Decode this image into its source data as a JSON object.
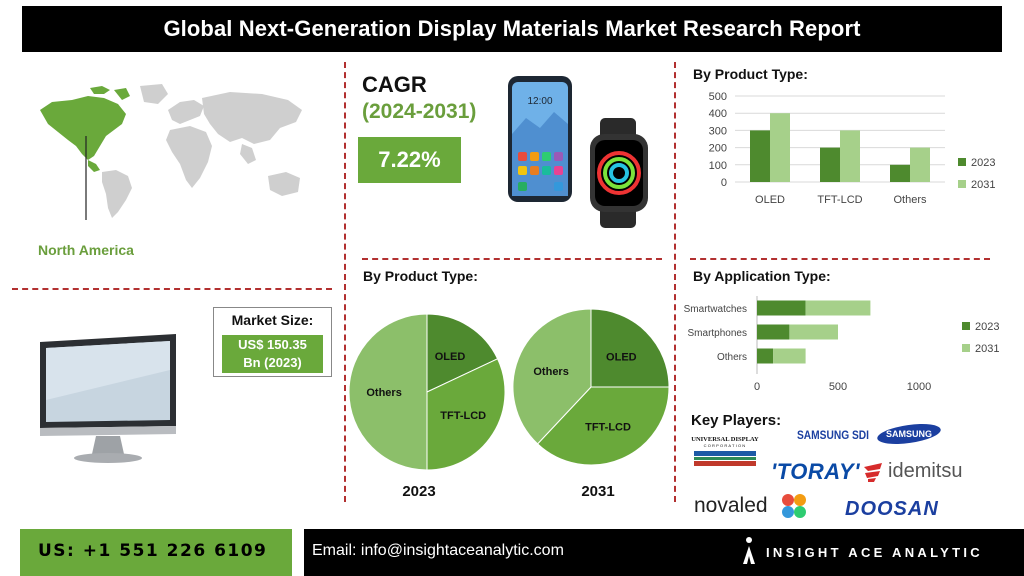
{
  "header": {
    "title": "Global Next-Generation Display Materials Market Research Report"
  },
  "region": {
    "label": "North America"
  },
  "market_size": {
    "label": "Market Size:",
    "value_line1": "US$ 150.35",
    "value_line2": "Bn (2023)"
  },
  "cagr": {
    "label": "CAGR",
    "period": "(2024-2031)",
    "value": "7.22%"
  },
  "phone_screen": {
    "time": "12:00"
  },
  "sections": {
    "bar_title": "By Product Type:",
    "pie_title": "By Product Type:",
    "hbar_title": "By Application Type:",
    "key_players_title": "Key Players:"
  },
  "chart_data": [
    {
      "type": "bar",
      "title": "By Product Type:",
      "categories": [
        "OLED",
        "TFT-LCD",
        "Others"
      ],
      "series": [
        {
          "name": "2023",
          "values": [
            300,
            200,
            100
          ],
          "color": "#4e8a2e"
        },
        {
          "name": "2031",
          "values": [
            400,
            300,
            200
          ],
          "color": "#a6d08a"
        }
      ],
      "ylim": [
        0,
        500
      ],
      "yticks": [
        "0",
        "100",
        "200",
        "300",
        "400",
        "500"
      ],
      "grid": true,
      "legend": "right"
    },
    {
      "type": "pie",
      "title": "By Product Type:",
      "label": "2023",
      "slices": [
        {
          "name": "OLED",
          "value": 18,
          "color": "#4e8a2e"
        },
        {
          "name": "TFT-LCD",
          "value": 32,
          "color": "#6aa93b"
        },
        {
          "name": "Others",
          "value": 50,
          "color": "#8cbf6a"
        }
      ]
    },
    {
      "type": "pie",
      "title": "By Product Type:",
      "label": "2031",
      "slices": [
        {
          "name": "OLED",
          "value": 25,
          "color": "#4e8a2e"
        },
        {
          "name": "TFT-LCD",
          "value": 37,
          "color": "#6aa93b"
        },
        {
          "name": "Others",
          "value": 38,
          "color": "#8cbf6a"
        }
      ]
    },
    {
      "type": "bar",
      "orientation": "horizontal",
      "stacked": true,
      "title": "By Application Type:",
      "categories": [
        "Smartwatches",
        "Smartphones",
        "Others"
      ],
      "series": [
        {
          "name": "2023",
          "values": [
            300,
            200,
            100
          ],
          "color": "#4e8a2e"
        },
        {
          "name": "2031",
          "values": [
            400,
            300,
            200
          ],
          "color": "#a6d08a"
        }
      ],
      "xlim": [
        0,
        1000
      ],
      "xticks": [
        "0",
        "500",
        "1000"
      ],
      "legend": "right"
    }
  ],
  "key_players": {
    "universal_line1": "UNIVERSAL DISPLAY",
    "universal_line2": "CORPORATION",
    "samsung_sdi": "SAMSUNG SDI",
    "samsung": "SAMSUNG",
    "toray": "'TORAY'",
    "idemitsu": "idemitsu",
    "novaled": "novaled",
    "doosan": "DOOSAN"
  },
  "footer": {
    "phone": "US: +1 551 226 6109",
    "email": "Email: info@insightaceanalytic.com",
    "brand": "INSIGHT ACE ANALYTIC"
  },
  "colors": {
    "accent_green": "#6aa93b",
    "dark_green": "#4e8a2e",
    "light_green": "#a6d08a",
    "divider_red": "#b23030"
  }
}
